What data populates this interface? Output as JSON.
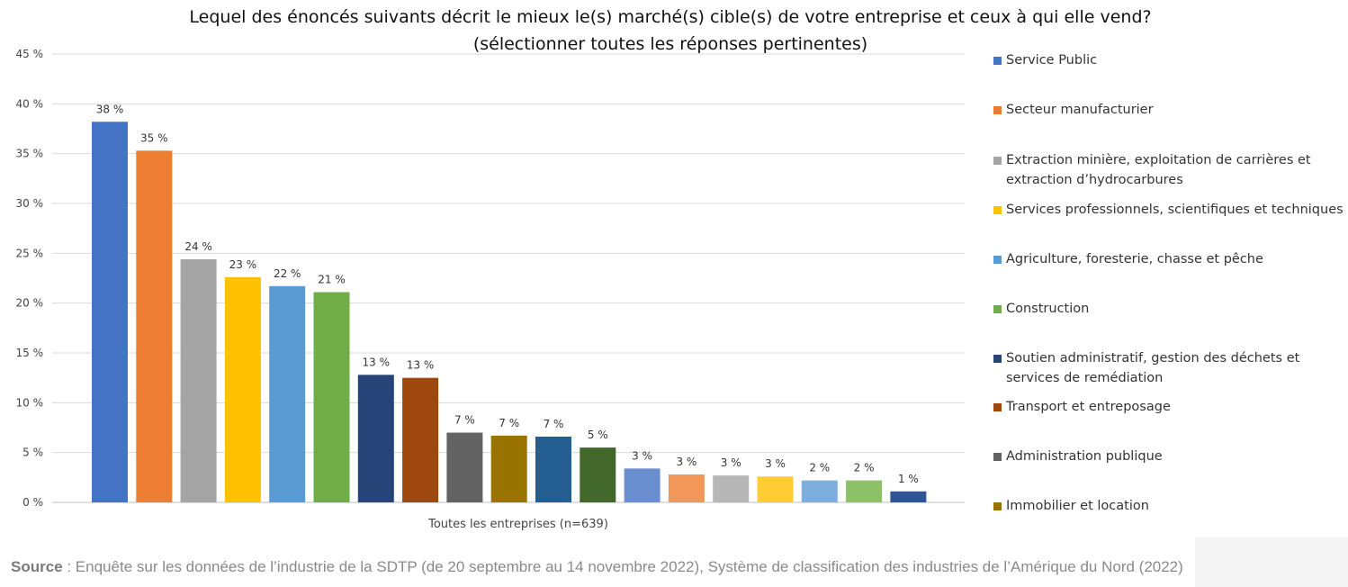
{
  "chart_data": {
    "type": "bar",
    "title_lines": [
      "Lequel des énoncés suivants décrit le mieux le(s) marché(s) cible(s) de votre entreprise et ceux à qui elle vend?",
      "(sélectionner toutes les réponses pertinentes)"
    ],
    "xlabel": "Toutes les entreprises (n=639)",
    "ylabel": "",
    "ylim": [
      0,
      45
    ],
    "yticks": [
      "0 %",
      "5 %",
      "10 %",
      "15 %",
      "20 %",
      "25 %",
      "30 %",
      "35 %",
      "40 %",
      "45 %"
    ],
    "grid": true,
    "legend_position": "right",
    "series": [
      {
        "name": "Service Public",
        "value": 38.2,
        "label": "38 %",
        "color": "#4472c4"
      },
      {
        "name": "Secteur manufacturier",
        "value": 35.3,
        "label": "35 %",
        "color": "#ed7d31"
      },
      {
        "name": "Extraction minière, exploitation de carrières et extraction d’hydrocarbures",
        "value": 24.4,
        "label": "24 %",
        "color": "#a5a5a5"
      },
      {
        "name": "Services professionnels, scientifiques et techniques",
        "value": 22.6,
        "label": "23 %",
        "color": "#ffc000"
      },
      {
        "name": "Agriculture, foresterie, chasse et pêche",
        "value": 21.7,
        "label": "22 %",
        "color": "#5b9bd5"
      },
      {
        "name": "Construction",
        "value": 21.1,
        "label": "21 %",
        "color": "#70ad47"
      },
      {
        "name": "Soutien administratif, gestion des déchets et services de remédiation",
        "value": 12.8,
        "label": "13 %",
        "color": "#264478"
      },
      {
        "name": "Transport et entreposage",
        "value": 12.5,
        "label": "13 %",
        "color": "#9e480e"
      },
      {
        "name": "Administration publique",
        "value": 7.0,
        "label": "7 %",
        "color": "#636363"
      },
      {
        "name": "Immobilier et location",
        "value": 6.7,
        "label": "7 %",
        "color": "#997300"
      },
      {
        "name": "",
        "value": 6.6,
        "label": "7 %",
        "color": "#255e91"
      },
      {
        "name": "",
        "value": 5.5,
        "label": "5 %",
        "color": "#43682b"
      },
      {
        "name": "",
        "value": 3.4,
        "label": "3 %",
        "color": "#698ed0"
      },
      {
        "name": "",
        "value": 2.8,
        "label": "3 %",
        "color": "#f1975a"
      },
      {
        "name": "",
        "value": 2.7,
        "label": "3 %",
        "color": "#b7b7b7"
      },
      {
        "name": "",
        "value": 2.6,
        "label": "3 %",
        "color": "#ffcd33"
      },
      {
        "name": "",
        "value": 2.2,
        "label": "2 %",
        "color": "#7cafdd"
      },
      {
        "name": "",
        "value": 2.2,
        "label": "2 %",
        "color": "#8cc168"
      },
      {
        "name": "",
        "value": 1.1,
        "label": "1 %",
        "color": "#2f5597"
      }
    ]
  },
  "legend": [
    {
      "label": "Service Public",
      "color": "#4472c4"
    },
    {
      "label": "Secteur manufacturier",
      "color": "#ed7d31"
    },
    {
      "label": "Extraction minière, exploitation de carrières et extraction d’hydrocarbures",
      "color": "#a5a5a5"
    },
    {
      "label": "Services professionnels, scientifiques et techniques",
      "color": "#ffc000"
    },
    {
      "label": "Agriculture, foresterie, chasse et pêche",
      "color": "#5b9bd5"
    },
    {
      "label": "Construction",
      "color": "#70ad47"
    },
    {
      "label": "Soutien administratif, gestion des déchets et services de remédiation",
      "color": "#264478"
    },
    {
      "label": "Transport et entreposage",
      "color": "#9e480e"
    },
    {
      "label": "Administration publique",
      "color": "#636363"
    },
    {
      "label": "Immobilier et location",
      "color": "#997300"
    }
  ],
  "source": {
    "prefix": "Source",
    "text": " : Enquête sur les données de l’industrie de la SDTP (de 20 septembre au 14 novembre 2022), Système de classification des industries de l’Amérique du Nord (2022)"
  }
}
